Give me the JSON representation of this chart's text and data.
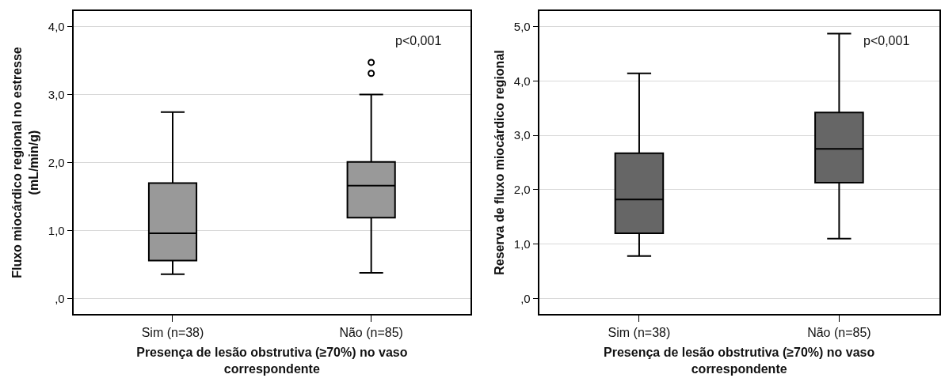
{
  "chart_data": [
    {
      "type": "box",
      "categories": [
        "Sim (n=38)",
        "Não (n=85)"
      ],
      "xlabel": "Presença de lesão obstrutiva (≥70%) no vaso correspondente",
      "ylabel": "Fluxo miocárdico regional no estresse (mL/min/g)",
      "color": "#999999",
      "boxes": [
        {
          "low": 0.36,
          "q1": 0.56,
          "median": 0.96,
          "q3": 1.7,
          "high": 2.74
        },
        {
          "low": 0.38,
          "q1": 1.19,
          "median": 1.66,
          "q3": 2.01,
          "high": 3.0,
          "outliers": [
            3.47,
            3.31
          ]
        }
      ],
      "ylim": [
        -0.22,
        4.22
      ],
      "yticks": [
        {
          "value": 0,
          "label": ",0"
        },
        {
          "value": 1,
          "label": "1,0"
        },
        {
          "value": 2,
          "label": "2,0"
        },
        {
          "value": 3,
          "label": "3,0"
        },
        {
          "value": 4,
          "label": "4,0"
        }
      ],
      "grid": "y",
      "annotations": [
        "p<0,001"
      ]
    },
    {
      "type": "box",
      "categories": [
        "Sim (n=38)",
        "Não (n=85)"
      ],
      "xlabel": "Presença de lesão obstrutiva (≥70%) no vaso correspondente",
      "ylabel": "Reserva de fluxo miocárdico regional",
      "color": "#666666",
      "boxes": [
        {
          "low": 0.78,
          "q1": 1.2,
          "median": 1.82,
          "q3": 2.67,
          "high": 4.14
        },
        {
          "low": 1.1,
          "q1": 2.13,
          "median": 2.75,
          "q3": 3.42,
          "high": 4.87
        }
      ],
      "ylim": [
        -0.28,
        5.28
      ],
      "yticks": [
        {
          "value": 0,
          "label": ",0"
        },
        {
          "value": 1,
          "label": "1,0"
        },
        {
          "value": 2,
          "label": "2,0"
        },
        {
          "value": 3,
          "label": "3,0"
        },
        {
          "value": 4,
          "label": "4,0"
        },
        {
          "value": 5,
          "label": "5,0"
        }
      ],
      "grid": "y",
      "annotations": [
        "p<0,001"
      ]
    }
  ]
}
